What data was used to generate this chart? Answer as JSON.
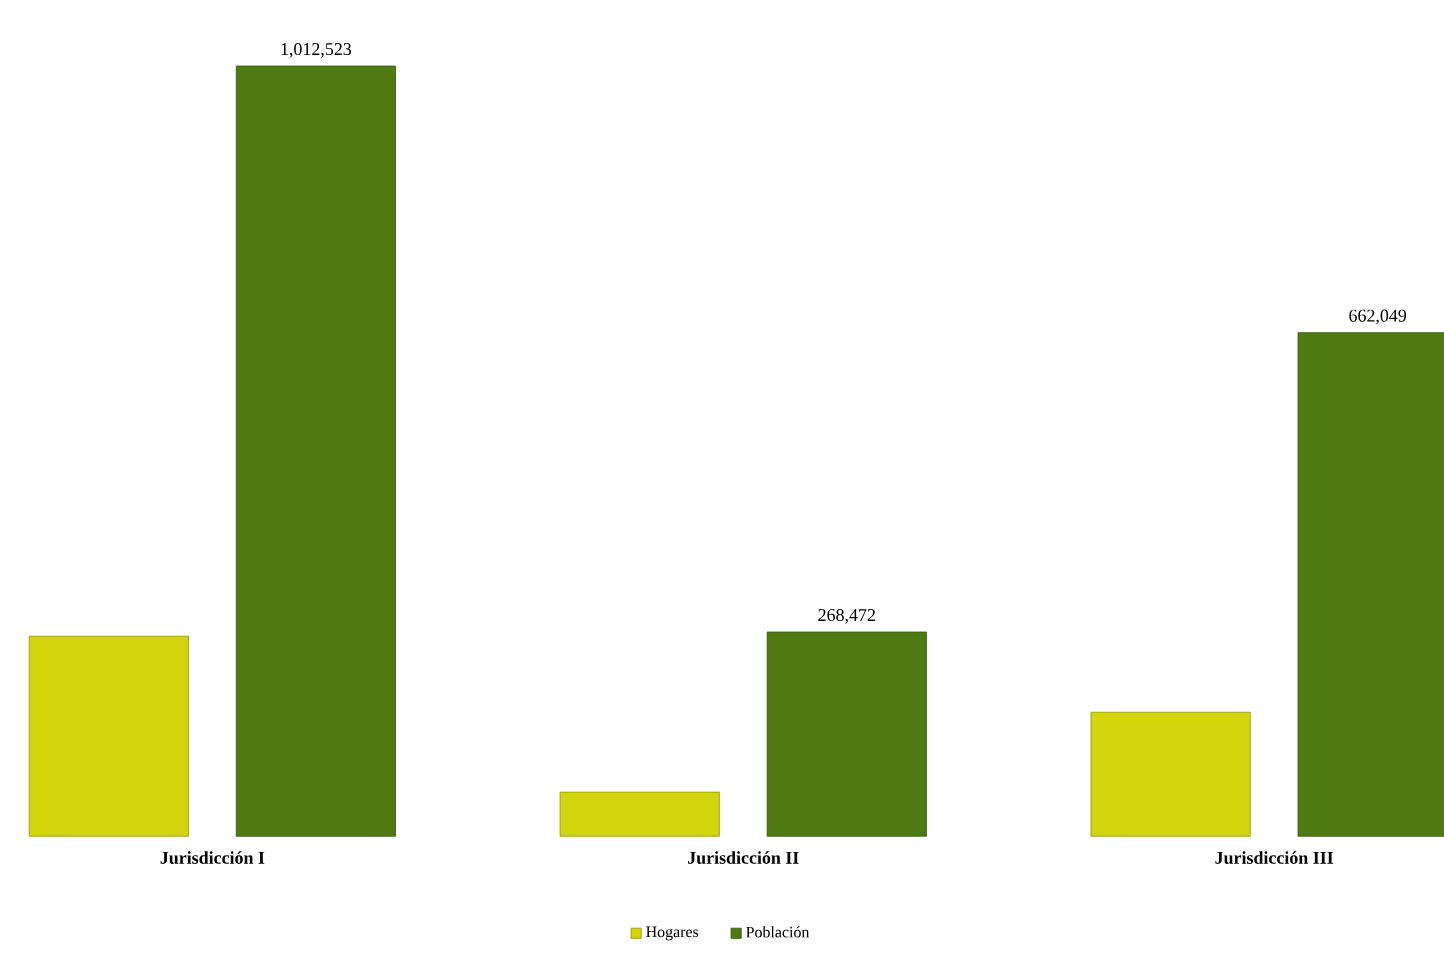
{
  "chart_data": {
    "type": "bar",
    "categories": [
      "Jurisdicción I",
      "Jurisdicción II",
      "Jurisdicción III"
    ],
    "series": [
      {
        "name": "Hogares",
        "color": "#d2d40c",
        "values": [
          263000,
          58000,
          163000
        ]
      },
      {
        "name": "Población",
        "color": "#4f7a12",
        "values": [
          1012523,
          268472,
          662049
        ],
        "value_labels": [
          "1,012,523",
          "268,472",
          "662,049"
        ]
      }
    ],
    "legend": "bottom"
  }
}
